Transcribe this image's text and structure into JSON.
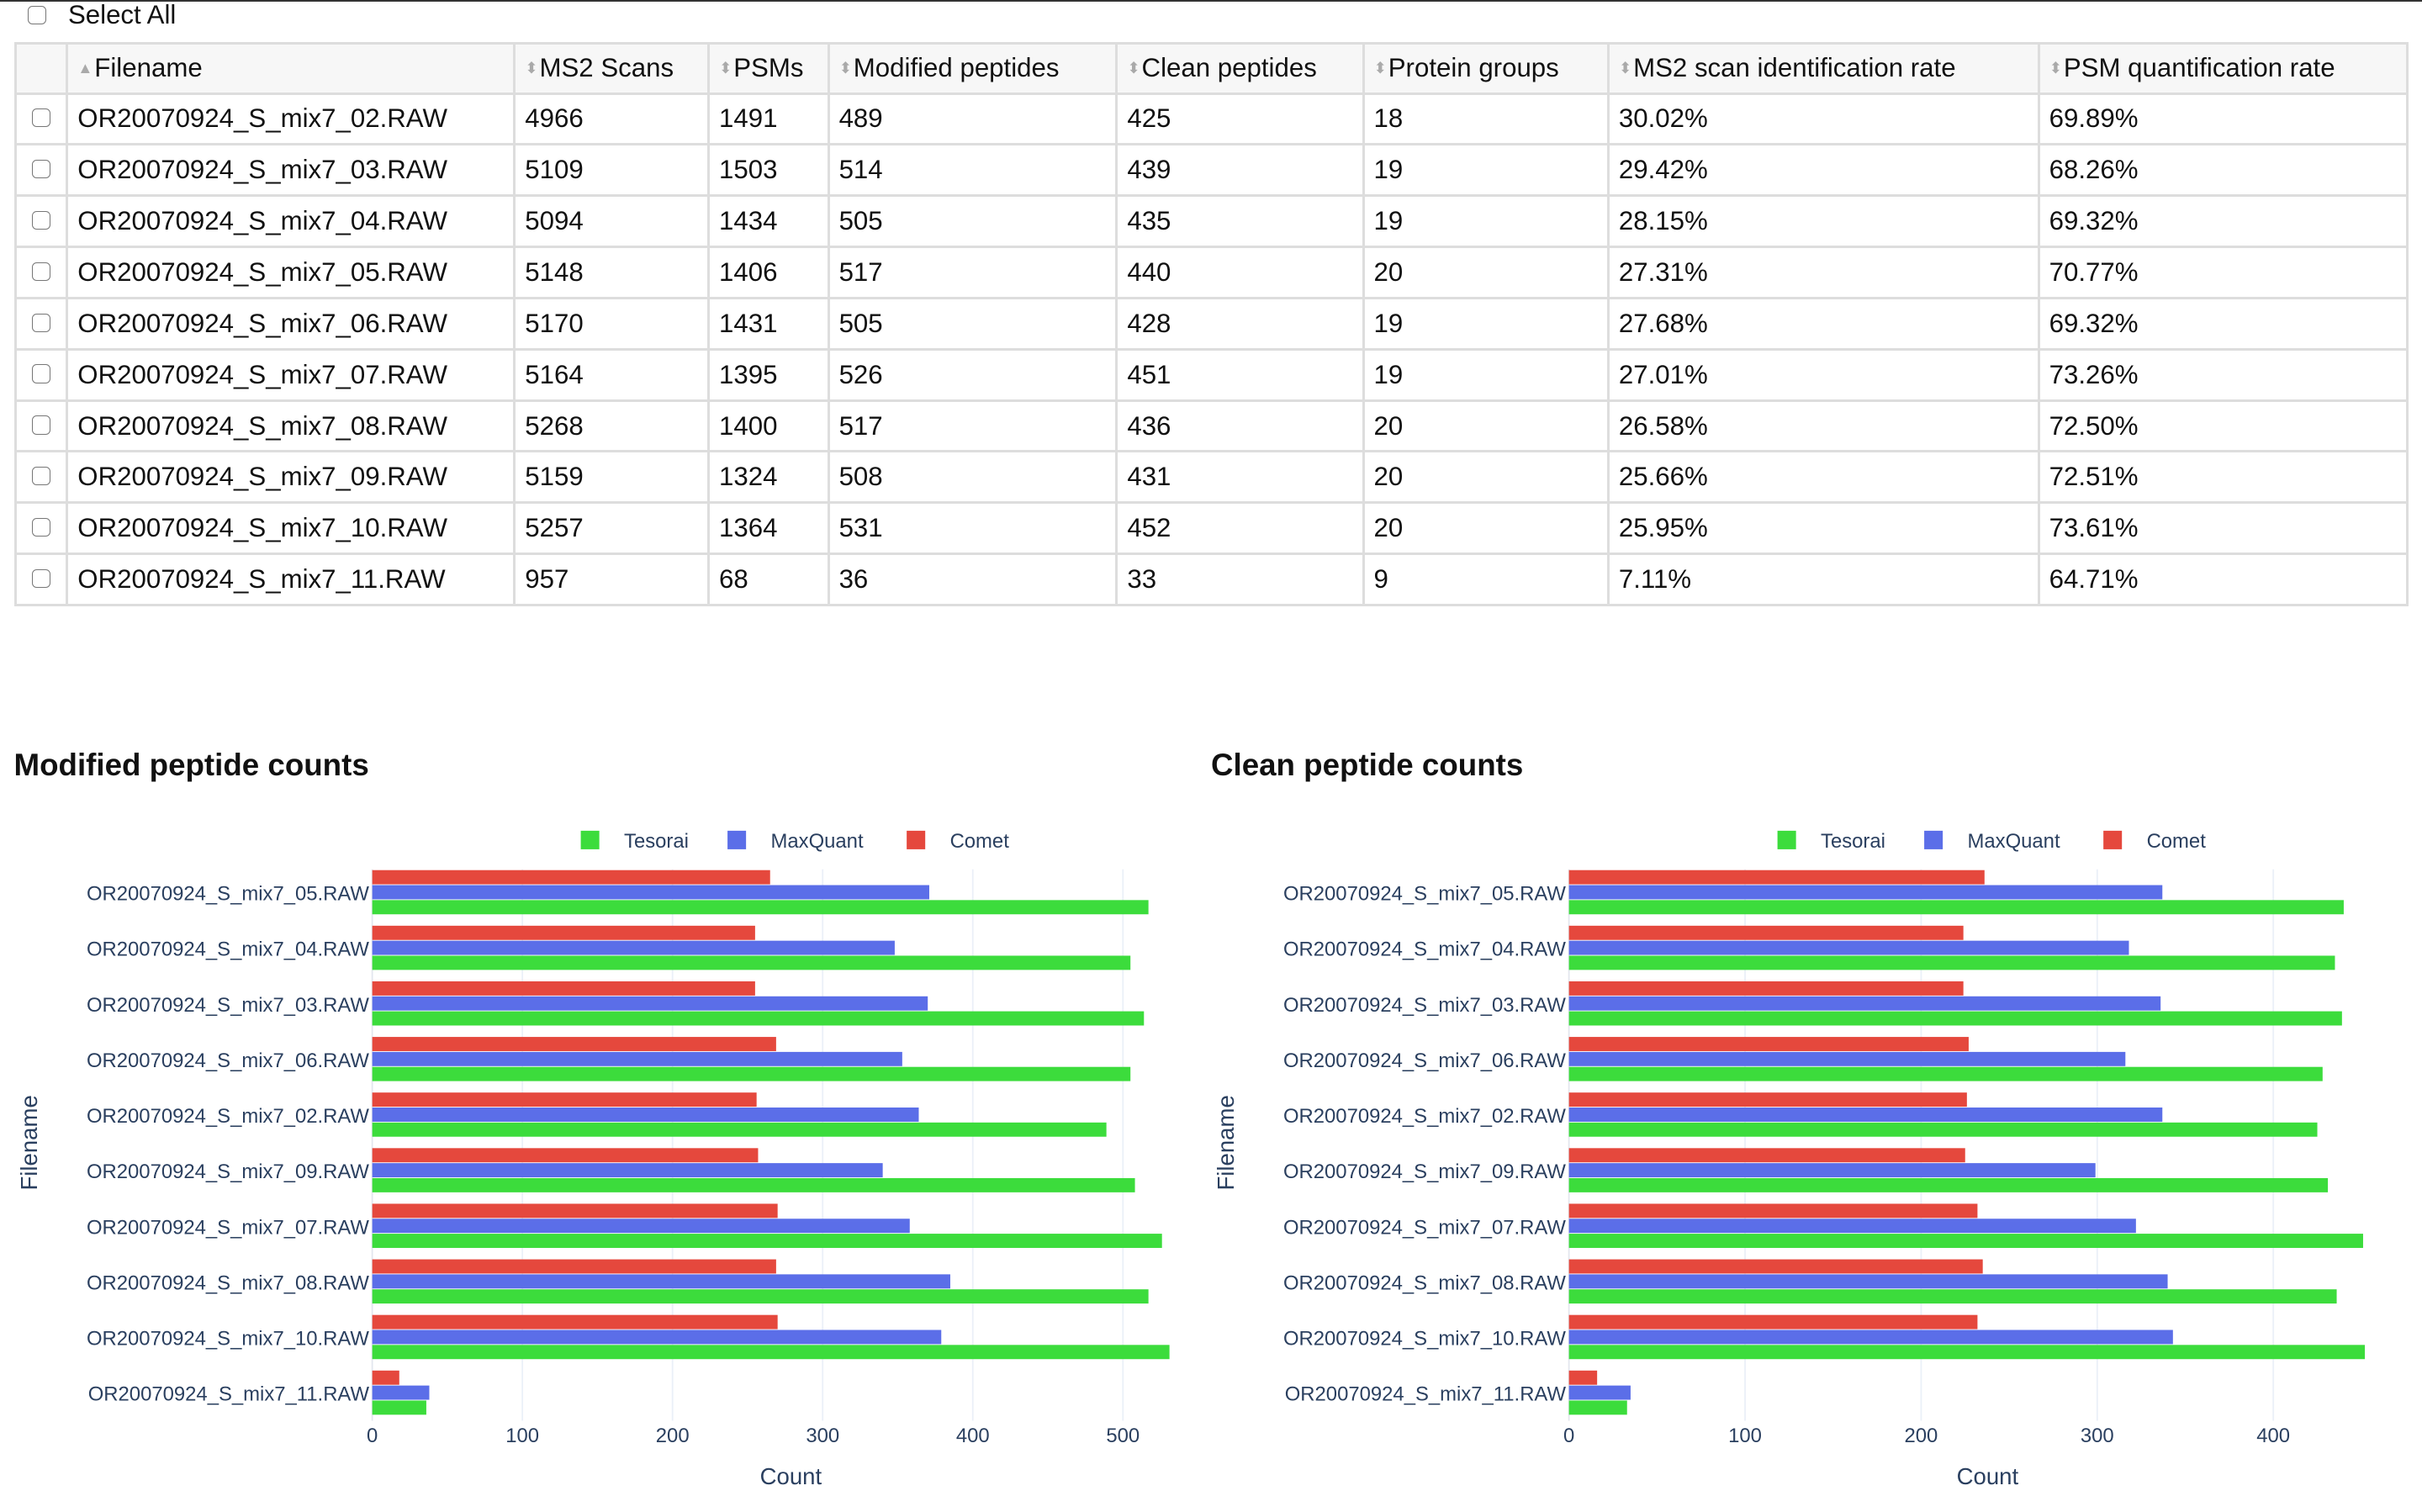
{
  "select_all_label": "Select All",
  "table": {
    "columns": [
      "Filename",
      "MS2 Scans",
      "PSMs",
      "Modified peptides",
      "Clean peptides",
      "Protein groups",
      "MS2 scan identification rate",
      "PSM quantification rate"
    ],
    "rows": [
      [
        "OR20070924_S_mix7_02.RAW",
        "4966",
        "1491",
        "489",
        "425",
        "18",
        "30.02%",
        "69.89%"
      ],
      [
        "OR20070924_S_mix7_03.RAW",
        "5109",
        "1503",
        "514",
        "439",
        "19",
        "29.42%",
        "68.26%"
      ],
      [
        "OR20070924_S_mix7_04.RAW",
        "5094",
        "1434",
        "505",
        "435",
        "19",
        "28.15%",
        "69.32%"
      ],
      [
        "OR20070924_S_mix7_05.RAW",
        "5148",
        "1406",
        "517",
        "440",
        "20",
        "27.31%",
        "70.77%"
      ],
      [
        "OR20070924_S_mix7_06.RAW",
        "5170",
        "1431",
        "505",
        "428",
        "19",
        "27.68%",
        "69.32%"
      ],
      [
        "OR20070924_S_mix7_07.RAW",
        "5164",
        "1395",
        "526",
        "451",
        "19",
        "27.01%",
        "73.26%"
      ],
      [
        "OR20070924_S_mix7_08.RAW",
        "5268",
        "1400",
        "517",
        "436",
        "20",
        "26.58%",
        "72.50%"
      ],
      [
        "OR20070924_S_mix7_09.RAW",
        "5159",
        "1324",
        "508",
        "431",
        "20",
        "25.66%",
        "72.51%"
      ],
      [
        "OR20070924_S_mix7_10.RAW",
        "5257",
        "1364",
        "531",
        "452",
        "20",
        "25.95%",
        "73.61%"
      ],
      [
        "OR20070924_S_mix7_11.RAW",
        "957",
        "68",
        "36",
        "33",
        "9",
        "7.11%",
        "64.71%"
      ]
    ]
  },
  "chart_data": [
    {
      "type": "bar",
      "orientation": "horizontal",
      "title": "Modified peptide counts",
      "xlabel": "Count",
      "ylabel": "Filename",
      "xlim": [
        0,
        535
      ],
      "xticks": [
        "0",
        "100",
        "200",
        "300",
        "400",
        "500"
      ],
      "grid": true,
      "legend": "top",
      "categories": [
        "OR20070924_S_mix7_05.RAW",
        "OR20070924_S_mix7_04.RAW",
        "OR20070924_S_mix7_03.RAW",
        "OR20070924_S_mix7_06.RAW",
        "OR20070924_S_mix7_02.RAW",
        "OR20070924_S_mix7_09.RAW",
        "OR20070924_S_mix7_07.RAW",
        "OR20070924_S_mix7_08.RAW",
        "OR20070924_S_mix7_10.RAW",
        "OR20070924_S_mix7_11.RAW"
      ],
      "series": [
        {
          "name": "Tesorai",
          "color": "#3cdc3c",
          "values": [
            517,
            505,
            514,
            505,
            489,
            508,
            526,
            517,
            531,
            36
          ]
        },
        {
          "name": "MaxQuant",
          "color": "#5b6ee8",
          "values": [
            371,
            348,
            370,
            353,
            364,
            340,
            358,
            385,
            379,
            38
          ]
        },
        {
          "name": "Comet",
          "color": "#e5483d",
          "values": [
            265,
            255,
            255,
            269,
            256,
            257,
            270,
            269,
            270,
            18
          ]
        }
      ]
    },
    {
      "type": "bar",
      "orientation": "horizontal",
      "title": "Clean peptide counts",
      "xlabel": "Count",
      "ylabel": "Filename",
      "xlim": [
        0,
        455
      ],
      "xticks": [
        "0",
        "100",
        "200",
        "300",
        "400"
      ],
      "grid": true,
      "legend": "top",
      "categories": [
        "OR20070924_S_mix7_05.RAW",
        "OR20070924_S_mix7_04.RAW",
        "OR20070924_S_mix7_03.RAW",
        "OR20070924_S_mix7_06.RAW",
        "OR20070924_S_mix7_02.RAW",
        "OR20070924_S_mix7_09.RAW",
        "OR20070924_S_mix7_07.RAW",
        "OR20070924_S_mix7_08.RAW",
        "OR20070924_S_mix7_10.RAW",
        "OR20070924_S_mix7_11.RAW"
      ],
      "series": [
        {
          "name": "Tesorai",
          "color": "#3cdc3c",
          "values": [
            440,
            435,
            439,
            428,
            425,
            431,
            451,
            436,
            452,
            33
          ]
        },
        {
          "name": "MaxQuant",
          "color": "#5b6ee8",
          "values": [
            337,
            318,
            336,
            316,
            337,
            299,
            322,
            340,
            343,
            35
          ]
        },
        {
          "name": "Comet",
          "color": "#e5483d",
          "values": [
            236,
            224,
            224,
            227,
            226,
            225,
            232,
            235,
            232,
            16
          ]
        }
      ]
    }
  ]
}
